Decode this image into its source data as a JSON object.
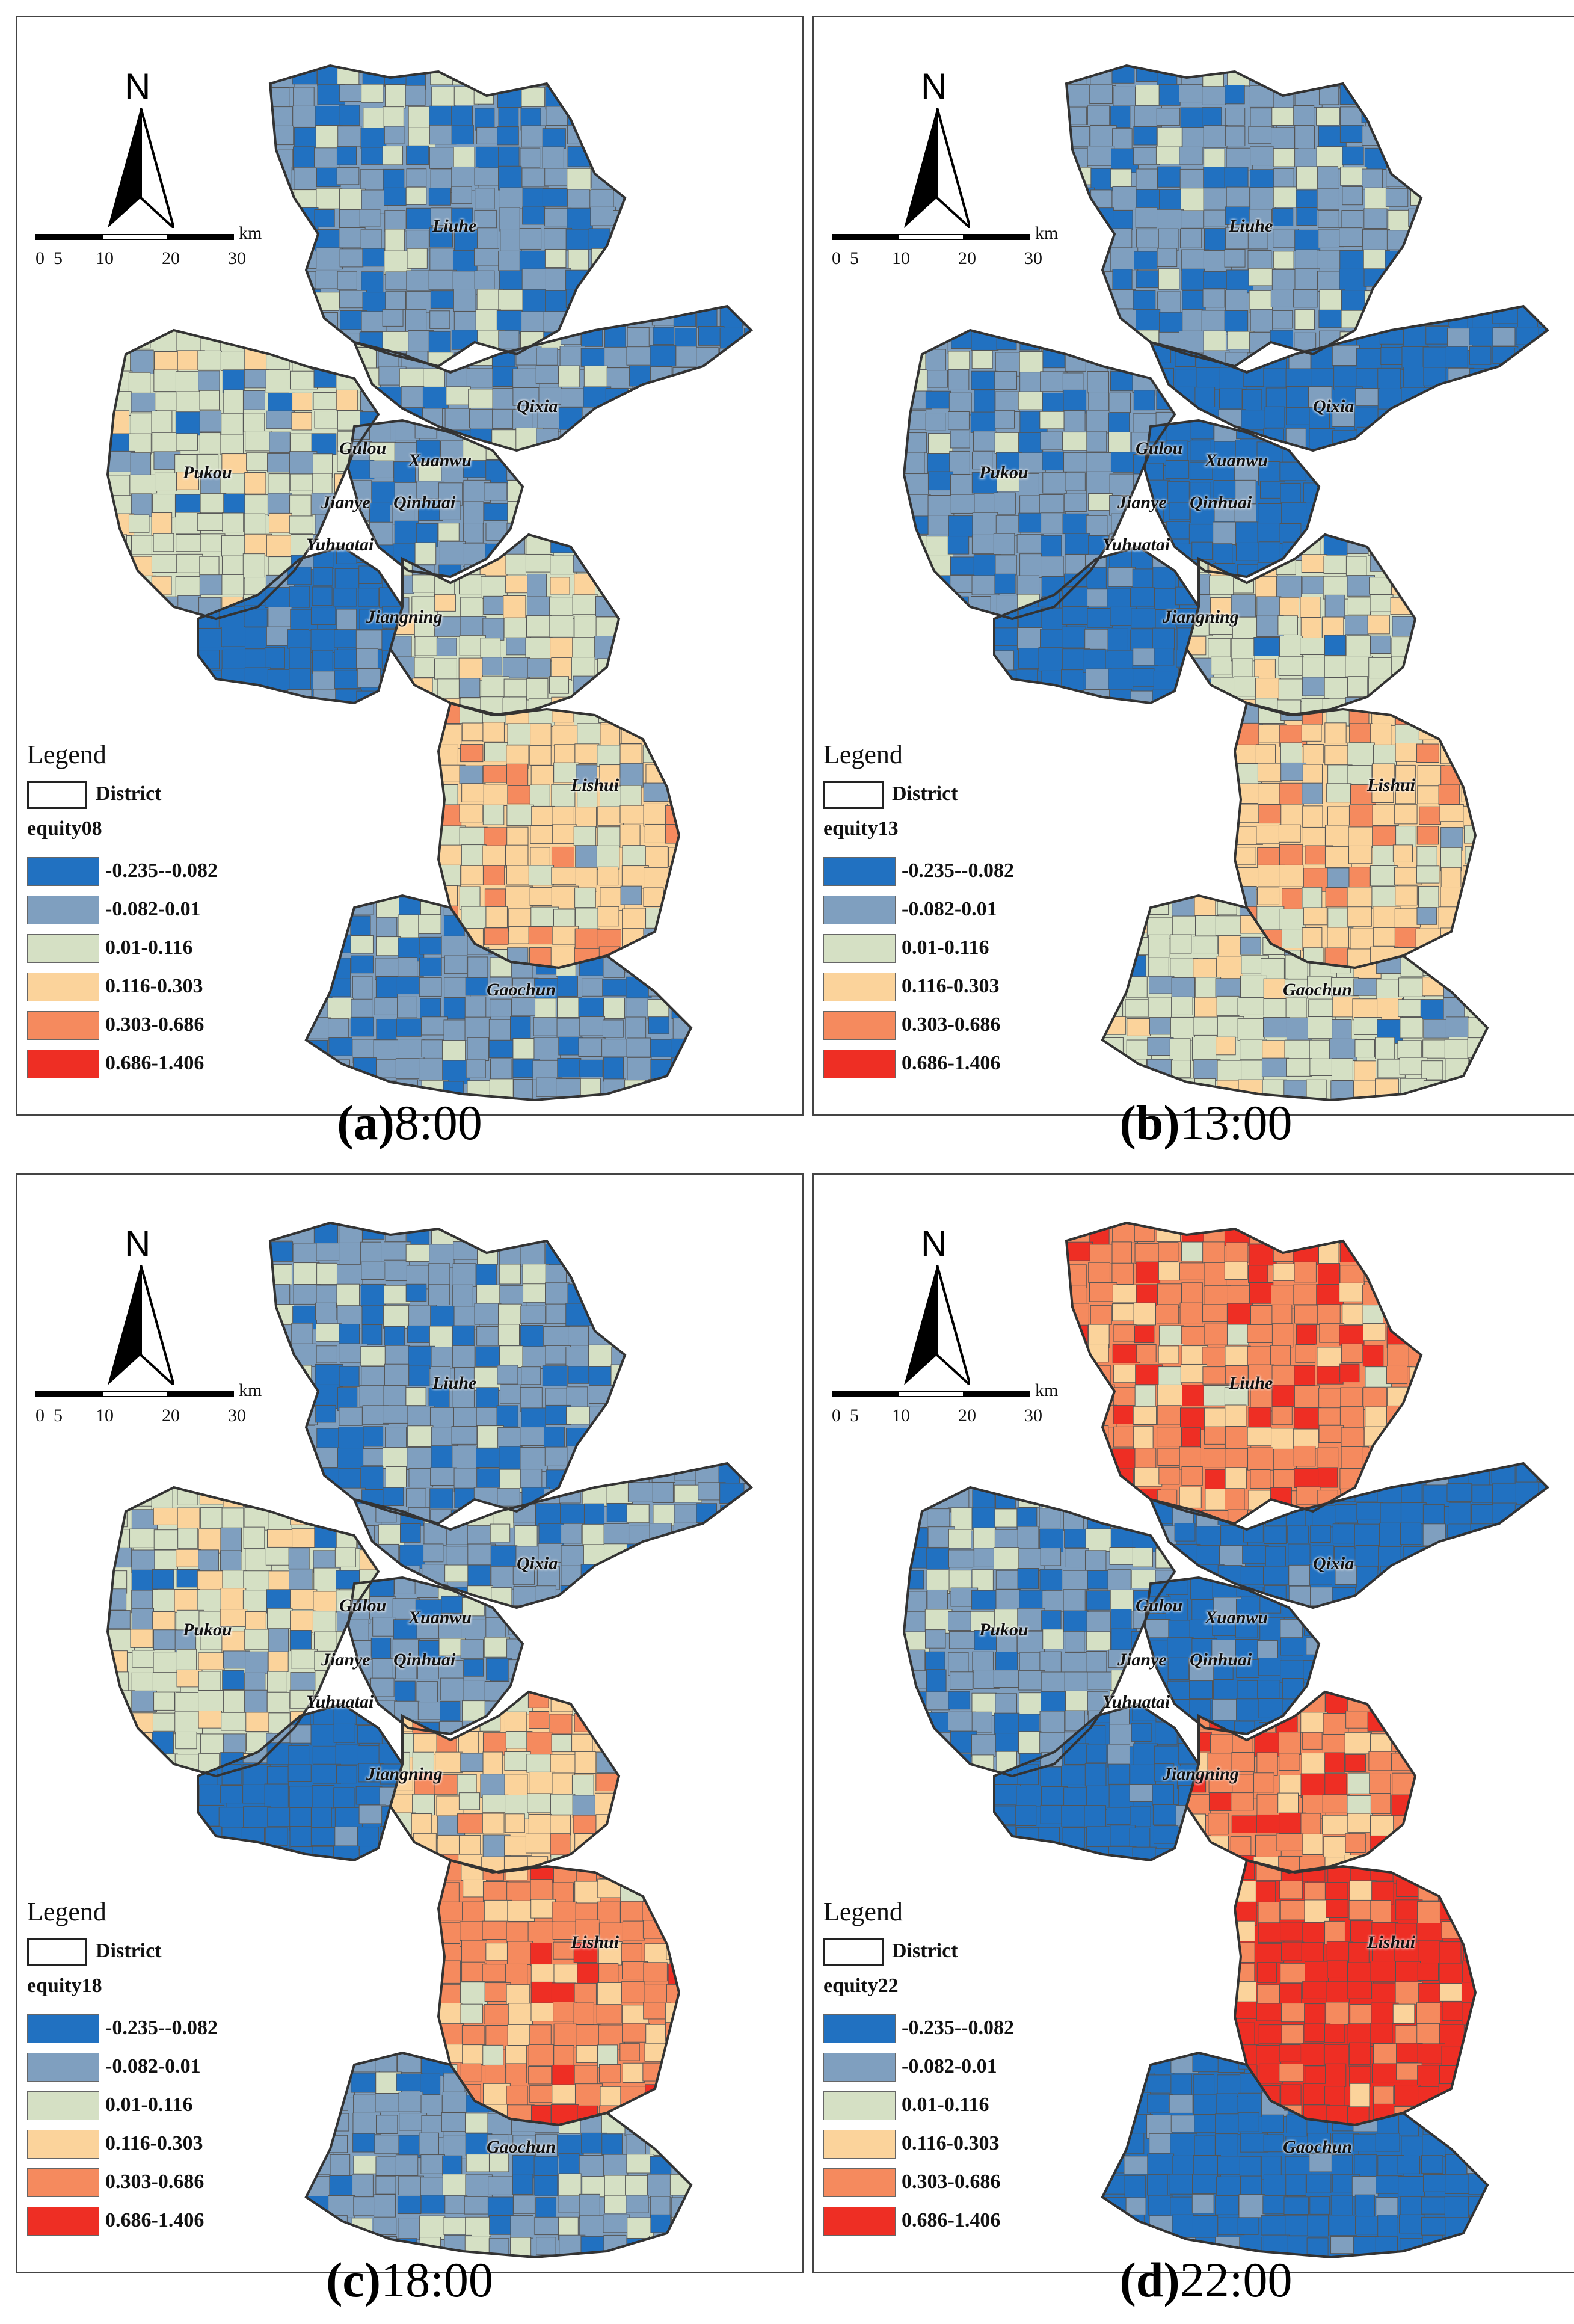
{
  "panels": [
    {
      "caption_letter": "(a)",
      "caption_time": "8:00",
      "field": "equity08",
      "dominant": [
        "c2",
        "c2",
        "c3",
        "c2",
        "c1",
        "c3",
        "c4",
        "c2"
      ]
    },
    {
      "caption_letter": "(b)",
      "caption_time": "13:00",
      "field": "equity13",
      "dominant": [
        "c2",
        "c1",
        "c2",
        "c1",
        "c1",
        "c3",
        "c4",
        "c3"
      ]
    },
    {
      "caption_letter": "(c)",
      "caption_time": "18:00",
      "field": "equity18",
      "dominant": [
        "c2",
        "c2",
        "c3",
        "c2",
        "c1",
        "c4",
        "c5",
        "c2"
      ]
    },
    {
      "caption_letter": "(d)",
      "caption_time": "22:00",
      "field": "equity22",
      "dominant": [
        "c5",
        "c1",
        "c2",
        "c1",
        "c1",
        "c5",
        "c6",
        "c1"
      ]
    }
  ],
  "north": "N",
  "scale": {
    "unit": "km",
    "ticks": [
      "0",
      "5",
      "10",
      "20",
      "30"
    ]
  },
  "legend": {
    "title": "Legend",
    "district_label": "District",
    "classes": [
      {
        "label": "-0.235--0.082",
        "color": "#2171c1"
      },
      {
        "label": "-0.082-0.01",
        "color": "#7f9fbf"
      },
      {
        "label": "0.01-0.116",
        "color": "#d5e0c4"
      },
      {
        "label": "0.116-0.303",
        "color": "#fbd39b"
      },
      {
        "label": "0.303-0.686",
        "color": "#f58a5e"
      },
      {
        "label": "0.686-1.406",
        "color": "#ee2e24"
      }
    ]
  },
  "districts": [
    "Liuhe",
    "Qixia",
    "Gulou",
    "Xuanwu",
    "Pukou",
    "Jianye",
    "Qinhuai",
    "Yuhuatai",
    "Jiangning",
    "Lishui",
    "Gaochun"
  ]
}
